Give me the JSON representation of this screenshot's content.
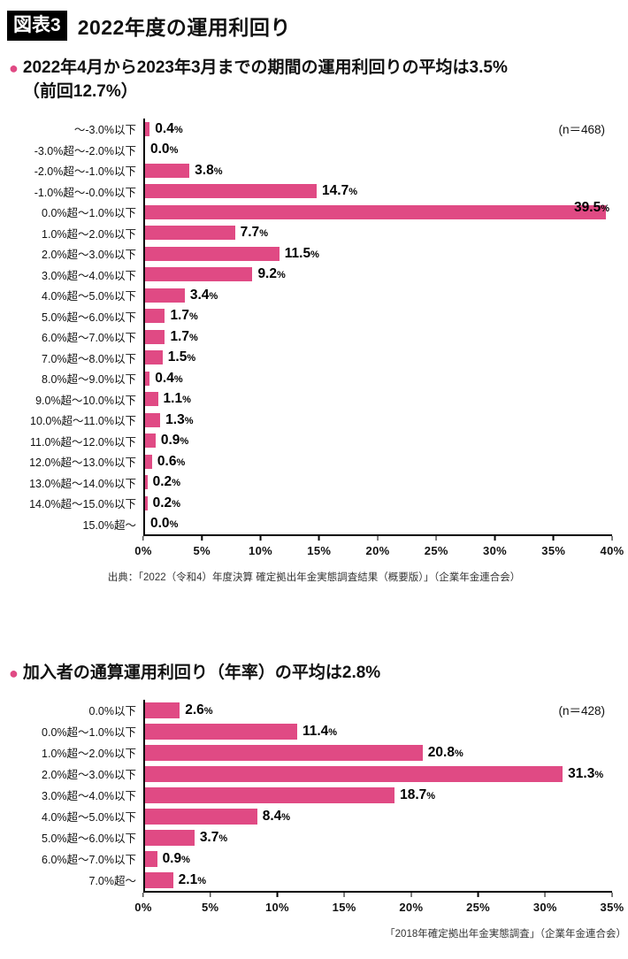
{
  "page": {
    "accent": "#e04a84",
    "bullet_glyph": "●"
  },
  "header": {
    "badge": "図表3",
    "title": "2022年度の運用利回り"
  },
  "sections": [
    {
      "heading_lines": [
        "2022年4月から2023年3月までの期間の運用利回りの平均は3.5%",
        "（前回12.7%）"
      ],
      "n_label": "(n＝468)",
      "source": "出典：「2022（令和4）年度決算 確定拠出年金実態調査結果（概要版）」（企業年金連合会）"
    },
    {
      "heading_lines": [
        "加入者の通算運用利回り（年率）の平均は2.8%"
      ],
      "n_label": "(n＝428)",
      "source": "「2018年確定拠出年金実態調査」（企業年金連合会）"
    }
  ],
  "chart_data": [
    {
      "type": "bar",
      "orientation": "horizontal",
      "title": "2022年4月から2023年3月までの期間の運用利回りの分布",
      "n": 468,
      "categories": [
        "〜-3.0%以下",
        "-3.0%超〜-2.0%以下",
        "-2.0%超〜-1.0%以下",
        "-1.0%超〜-0.0%以下",
        "0.0%超〜1.0%以下",
        "1.0%超〜2.0%以下",
        "2.0%超〜3.0%以下",
        "3.0%超〜4.0%以下",
        "4.0%超〜5.0%以下",
        "5.0%超〜6.0%以下",
        "6.0%超〜7.0%以下",
        "7.0%超〜8.0%以下",
        "8.0%超〜9.0%以下",
        "9.0%超〜10.0%以下",
        "10.0%超〜11.0%以下",
        "11.0%超〜12.0%以下",
        "12.0%超〜13.0%以下",
        "13.0%超〜14.0%以下",
        "14.0%超〜15.0%以下",
        "15.0%超〜"
      ],
      "values": [
        0.4,
        0.0,
        3.8,
        14.7,
        39.5,
        7.7,
        11.5,
        9.2,
        3.4,
        1.7,
        1.7,
        1.5,
        0.4,
        1.1,
        1.3,
        0.9,
        0.6,
        0.2,
        0.2,
        0.0
      ],
      "xlim": [
        0,
        40
      ],
      "xticks": [
        "0%",
        "5%",
        "10%",
        "15%",
        "20%",
        "25%",
        "30%",
        "35%",
        "40%"
      ],
      "grid": false,
      "legend": false,
      "bar_color": "#e04a84"
    },
    {
      "type": "bar",
      "orientation": "horizontal",
      "title": "加入者の通算運用利回り（年率）の分布",
      "n": 428,
      "categories": [
        "0.0%以下",
        "0.0%超〜1.0%以下",
        "1.0%超〜2.0%以下",
        "2.0%超〜3.0%以下",
        "3.0%超〜4.0%以下",
        "4.0%超〜5.0%以下",
        "5.0%超〜6.0%以下",
        "6.0%超〜7.0%以下",
        "7.0%超〜"
      ],
      "values": [
        2.6,
        11.4,
        20.8,
        31.3,
        18.7,
        8.4,
        3.7,
        0.9,
        2.1
      ],
      "xlim": [
        0,
        35
      ],
      "xticks": [
        "0%",
        "5%",
        "10%",
        "15%",
        "20%",
        "25%",
        "30%",
        "35%"
      ],
      "grid": false,
      "legend": false,
      "bar_color": "#e04a84"
    }
  ]
}
